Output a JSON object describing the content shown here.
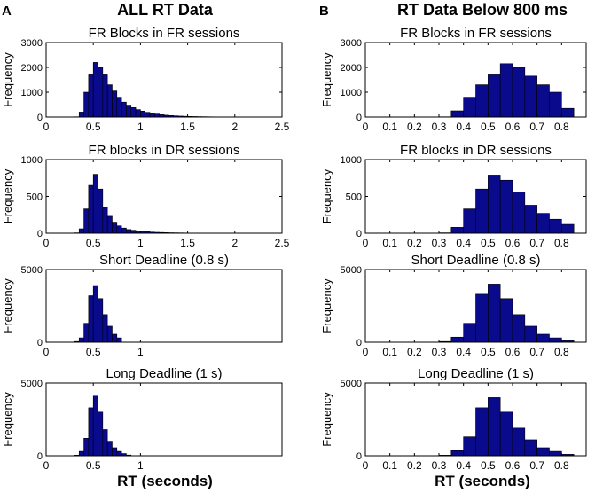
{
  "figure": {
    "panel_a": {
      "letter": "A",
      "heading": "ALL RT Data",
      "xlabel": "RT (seconds)"
    },
    "panel_b": {
      "letter": "B",
      "heading": "RT Data Below 800 ms",
      "xlabel": "RT (seconds)"
    },
    "ylabel": "Frequency",
    "bar_color": "#0a0a8c"
  },
  "chart_data": [
    {
      "type": "bar",
      "panel": "A",
      "title": "FR Blocks in FR sessions",
      "xlim": [
        0,
        2.5
      ],
      "ylim": [
        0,
        3000
      ],
      "bin_width": 0.05,
      "bin_start": 0.3,
      "xticks": [
        0,
        0.5,
        1,
        1.5,
        2,
        2.5
      ],
      "xtick_labels": [
        "0",
        "0.5",
        "1",
        "1.5",
        "2",
        "2.5"
      ],
      "yticks": [
        0,
        1000,
        2000,
        3000
      ],
      "ytick_labels": [
        "0",
        "1000",
        "2000",
        "3000"
      ],
      "values": [
        10,
        200,
        1000,
        1700,
        2200,
        2000,
        1700,
        1300,
        1050,
        800,
        600,
        480,
        380,
        300,
        240,
        190,
        150,
        120,
        95,
        75,
        60,
        48,
        38,
        30,
        24,
        20,
        16,
        13,
        10,
        8,
        6,
        5,
        4,
        3,
        2,
        2
      ]
    },
    {
      "type": "bar",
      "panel": "B",
      "title": "FR Blocks in FR sessions",
      "xlim": [
        0,
        0.9
      ],
      "ylim": [
        0,
        3000
      ],
      "bin_width": 0.05,
      "bin_start": 0.3,
      "xticks": [
        0,
        0.1,
        0.2,
        0.3,
        0.4,
        0.5,
        0.6,
        0.7,
        0.8
      ],
      "xtick_labels": [
        "0",
        "0.1",
        "0.2",
        "0.3",
        "0.4",
        "0.5",
        "0.6",
        "0.7",
        "0.8"
      ],
      "yticks": [
        0,
        1000,
        2000,
        3000
      ],
      "ytick_labels": [
        "0",
        "1000",
        "2000",
        "3000"
      ],
      "values": [
        10,
        250,
        800,
        1300,
        1700,
        2150,
        2000,
        1650,
        1300,
        1000,
        350
      ]
    },
    {
      "type": "bar",
      "panel": "A",
      "title": "FR blocks in DR sessions",
      "xlim": [
        0,
        2.5
      ],
      "ylim": [
        0,
        1000
      ],
      "bin_width": 0.05,
      "bin_start": 0.3,
      "xticks": [
        0,
        0.5,
        1,
        1.5,
        2,
        2.5
      ],
      "xtick_labels": [
        "0",
        "0.5",
        "1",
        "1.5",
        "2",
        "2.5"
      ],
      "yticks": [
        0,
        500,
        1000
      ],
      "ytick_labels": [
        "0",
        "500",
        "1000"
      ],
      "values": [
        5,
        60,
        330,
        650,
        800,
        600,
        350,
        230,
        150,
        100,
        70,
        50,
        40,
        30,
        25,
        20,
        15,
        12,
        10,
        8,
        6,
        5,
        4,
        3,
        2,
        2,
        2,
        1,
        1,
        1,
        1,
        1,
        1,
        1,
        1
      ]
    },
    {
      "type": "bar",
      "panel": "B",
      "title": "FR blocks in DR sessions",
      "xlim": [
        0,
        0.9
      ],
      "ylim": [
        0,
        1000
      ],
      "bin_width": 0.05,
      "bin_start": 0.3,
      "xticks": [
        0,
        0.1,
        0.2,
        0.3,
        0.4,
        0.5,
        0.6,
        0.7,
        0.8
      ],
      "xtick_labels": [
        "0",
        "0.1",
        "0.2",
        "0.3",
        "0.4",
        "0.5",
        "0.6",
        "0.7",
        "0.8"
      ],
      "yticks": [
        0,
        500,
        1000
      ],
      "ytick_labels": [
        "0",
        "500",
        "1000"
      ],
      "values": [
        5,
        80,
        330,
        600,
        790,
        720,
        560,
        380,
        270,
        190,
        120
      ]
    },
    {
      "type": "bar",
      "panel": "A",
      "title": "Short Deadline (0.8 s)",
      "xlim": [
        0,
        2.5
      ],
      "ylim": [
        0,
        5000
      ],
      "bin_width": 0.05,
      "bin_start": 0.3,
      "xticks": [
        0,
        0.5,
        1
      ],
      "xtick_labels": [
        "0",
        "0.5",
        "1"
      ],
      "yticks": [
        0,
        5000
      ],
      "ytick_labels": [
        "0",
        "5000"
      ],
      "values": [
        50,
        300,
        1300,
        3200,
        3900,
        3000,
        1900,
        1100,
        550,
        300
      ]
    },
    {
      "type": "bar",
      "panel": "B",
      "title": "Short Deadline (0.8 s)",
      "xlim": [
        0,
        0.9
      ],
      "ylim": [
        0,
        5000
      ],
      "bin_width": 0.05,
      "bin_start": 0.3,
      "xticks": [
        0,
        0.1,
        0.2,
        0.3,
        0.4,
        0.5,
        0.6,
        0.7,
        0.8
      ],
      "xtick_labels": [
        "0",
        "0.1",
        "0.2",
        "0.3",
        "0.4",
        "0.5",
        "0.6",
        "0.7",
        "0.8"
      ],
      "yticks": [
        0,
        5000
      ],
      "ytick_labels": [
        "0",
        "5000"
      ],
      "values": [
        50,
        350,
        1300,
        3300,
        4000,
        3000,
        1900,
        1100,
        550,
        300,
        100
      ]
    },
    {
      "type": "bar",
      "panel": "A",
      "title": "Long Deadline (1 s)",
      "xlim": [
        0,
        2.5
      ],
      "ylim": [
        0,
        5000
      ],
      "bin_width": 0.05,
      "bin_start": 0.3,
      "xticks": [
        0,
        0.5,
        1
      ],
      "xtick_labels": [
        "0",
        "0.5",
        "1"
      ],
      "yticks": [
        0,
        5000
      ],
      "ytick_labels": [
        "0",
        "5000"
      ],
      "values": [
        40,
        300,
        1200,
        3300,
        4100,
        3000,
        1800,
        1000,
        550,
        300,
        150,
        50
      ]
    },
    {
      "type": "bar",
      "panel": "B",
      "title": "Long Deadline (1 s)",
      "xlim": [
        0,
        0.9
      ],
      "ylim": [
        0,
        5000
      ],
      "bin_width": 0.05,
      "bin_start": 0.3,
      "xticks": [
        0,
        0.1,
        0.2,
        0.3,
        0.4,
        0.5,
        0.6,
        0.7,
        0.8
      ],
      "xtick_labels": [
        "0",
        "0.1",
        "0.2",
        "0.3",
        "0.4",
        "0.5",
        "0.6",
        "0.7",
        "0.8"
      ],
      "yticks": [
        0,
        5000
      ],
      "ytick_labels": [
        "0",
        "5000"
      ],
      "values": [
        40,
        350,
        1300,
        3300,
        4000,
        3000,
        1900,
        1100,
        550,
        300,
        100
      ]
    }
  ]
}
